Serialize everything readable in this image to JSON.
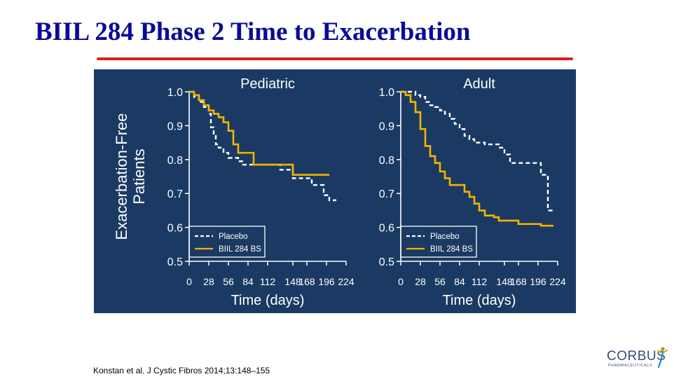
{
  "slide": {
    "title": "BIIL 284 Phase 2 Time to Exacerbation",
    "citation": "Konstan et al.  J Cystic Fibros 2014;13:148–155"
  },
  "logo": {
    "name": "CORBUS",
    "subtitle": "PHARMACEUTICALS"
  },
  "colors": {
    "title": "#0a0a99",
    "rule": "#e31d1d",
    "panel_bg": "#1b3a63",
    "placebo": "#ffffff",
    "biil": "#f5b301",
    "axis": "#ffffff",
    "logo": "#3a4e79"
  },
  "chart_data": [
    {
      "type": "line",
      "title": "Pediatric",
      "xlabel": "Time (days)",
      "ylabel": "Exacerbation-Free Patients",
      "xticks": [
        0,
        28,
        56,
        84,
        112,
        148,
        168,
        196,
        224
      ],
      "yticks": [
        "0.5",
        "0.6",
        "0.7",
        "0.8",
        "0.9",
        "1.0"
      ],
      "ylim": [
        0.5,
        1.0
      ],
      "grid": false,
      "legend": "bottom-left",
      "series": [
        {
          "name": "Placebo",
          "style": "dashed",
          "x": [
            0,
            7,
            14,
            21,
            28,
            31,
            35,
            38,
            42,
            49,
            56,
            63,
            70,
            77,
            84,
            91,
            98,
            112,
            130,
            136,
            148,
            165,
            175,
            182,
            192,
            200,
            210
          ],
          "y": [
            1.0,
            0.985,
            0.97,
            0.955,
            0.935,
            0.895,
            0.87,
            0.845,
            0.835,
            0.82,
            0.805,
            0.805,
            0.795,
            0.785,
            0.785,
            0.785,
            0.785,
            0.785,
            0.77,
            0.77,
            0.745,
            0.745,
            0.725,
            0.725,
            0.695,
            0.68,
            0.68
          ]
        },
        {
          "name": "BIIL 284 BS",
          "style": "solid",
          "x": [
            0,
            7,
            14,
            21,
            28,
            35,
            42,
            49,
            56,
            63,
            70,
            77,
            84,
            92,
            100,
            112,
            130,
            148,
            165,
            180,
            200
          ],
          "y": [
            1.0,
            0.99,
            0.975,
            0.96,
            0.945,
            0.935,
            0.925,
            0.91,
            0.885,
            0.845,
            0.82,
            0.82,
            0.82,
            0.785,
            0.785,
            0.785,
            0.785,
            0.755,
            0.755,
            0.755,
            0.755
          ]
        }
      ]
    },
    {
      "type": "line",
      "title": "Adult",
      "xlabel": "Time (days)",
      "ylabel": "",
      "xticks": [
        0,
        28,
        56,
        84,
        112,
        148,
        168,
        196,
        224
      ],
      "yticks": [
        "0.5",
        "0.6",
        "0.7",
        "0.8",
        "0.9",
        "1.0"
      ],
      "ylim": [
        0.5,
        1.0
      ],
      "grid": false,
      "legend": "bottom-left",
      "series": [
        {
          "name": "Placebo",
          "style": "dashed",
          "x": [
            0,
            14,
            21,
            28,
            35,
            42,
            49,
            56,
            63,
            70,
            77,
            84,
            91,
            98,
            105,
            112,
            120,
            133,
            140,
            148,
            156,
            168,
            182,
            196,
            200,
            210,
            218
          ],
          "y": [
            1.0,
            1.0,
            0.99,
            0.985,
            0.97,
            0.96,
            0.955,
            0.945,
            0.935,
            0.92,
            0.905,
            0.89,
            0.87,
            0.86,
            0.85,
            0.85,
            0.845,
            0.845,
            0.835,
            0.815,
            0.79,
            0.79,
            0.79,
            0.79,
            0.755,
            0.65,
            0.65
          ]
        },
        {
          "name": "BIIL 284 BS",
          "style": "solid",
          "x": [
            0,
            7,
            14,
            21,
            28,
            35,
            42,
            49,
            56,
            63,
            70,
            77,
            84,
            91,
            98,
            105,
            112,
            120,
            133,
            140,
            148,
            168,
            182,
            200,
            218
          ],
          "y": [
            1.0,
            0.99,
            0.97,
            0.94,
            0.89,
            0.84,
            0.81,
            0.79,
            0.765,
            0.745,
            0.725,
            0.725,
            0.725,
            0.705,
            0.69,
            0.67,
            0.65,
            0.635,
            0.63,
            0.62,
            0.62,
            0.61,
            0.61,
            0.605,
            0.605
          ]
        }
      ]
    }
  ]
}
